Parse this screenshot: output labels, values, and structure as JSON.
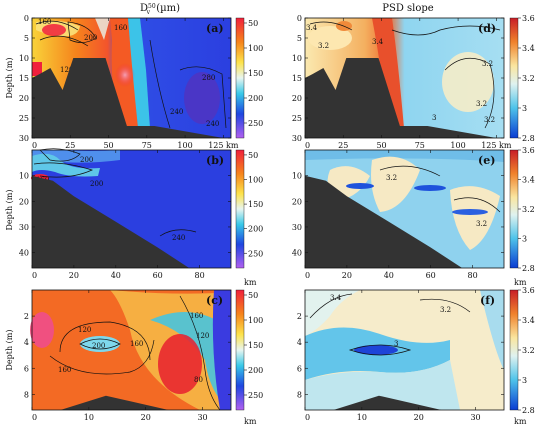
{
  "column_titles": {
    "left": "D",
    "left_sub": "v",
    "left_sup": "50",
    "left_unit": " (µm)",
    "right": "PSD slope"
  },
  "km_label": "km",
  "chart_data": [
    {
      "type": "heatmap",
      "panel": "(a)",
      "column": "left",
      "ylabel": "Depth (m)",
      "xlim": [
        0,
        130
      ],
      "ylim": [
        0,
        30
      ],
      "y_inverted": true,
      "x_ticks": [
        0,
        25,
        50,
        75,
        100,
        125
      ],
      "y_ticks": [
        0,
        5,
        10,
        15,
        20,
        25,
        30
      ],
      "x_tick_labels": [
        "0",
        "25",
        "50",
        "75",
        "100",
        "125 km"
      ],
      "colorbar": {
        "min": 40,
        "max": 280,
        "reversed": true,
        "ticks": [
          50,
          100,
          150,
          200,
          250
        ]
      },
      "contour_labels": [
        "160",
        "200",
        "120",
        "160",
        "280",
        "240",
        "240"
      ],
      "bathymetry": [
        [
          0,
          15
        ],
        [
          5,
          14
        ],
        [
          12,
          12.5
        ],
        [
          20,
          18
        ],
        [
          27,
          10
        ],
        [
          48,
          10
        ],
        [
          62,
          27
        ],
        [
          80,
          27
        ],
        [
          125,
          30
        ]
      ]
    },
    {
      "type": "heatmap",
      "panel": "(b)",
      "column": "left",
      "ylabel": "Depth (m)",
      "xlim": [
        0,
        95
      ],
      "ylim": [
        0,
        46
      ],
      "y_inverted": true,
      "x_ticks": [
        0,
        20,
        40,
        60,
        80
      ],
      "y_ticks": [
        10,
        20,
        30,
        40
      ],
      "x_tick_labels": [
        "0",
        "20",
        "40",
        "60",
        "80"
      ],
      "colorbar": {
        "min": 40,
        "max": 280,
        "reversed": true,
        "ticks": [
          50,
          100,
          150,
          200,
          250
        ]
      },
      "contour_labels": [
        "200",
        "160",
        "200",
        "240"
      ],
      "bathymetry": [
        [
          0,
          10
        ],
        [
          10,
          12
        ],
        [
          20,
          18
        ],
        [
          40,
          28
        ],
        [
          60,
          38
        ],
        [
          75,
          46
        ]
      ]
    },
    {
      "type": "heatmap",
      "panel": "(c)",
      "column": "left",
      "ylabel": "Depth (m)",
      "xlim": [
        0,
        35
      ],
      "ylim": [
        0,
        9.2
      ],
      "y_inverted": true,
      "x_ticks": [
        0,
        10,
        20,
        30
      ],
      "y_ticks": [
        2,
        4,
        6,
        8
      ],
      "x_tick_labels": [
        "0",
        "10",
        "20",
        "30"
      ],
      "colorbar": {
        "min": 40,
        "max": 280,
        "reversed": true,
        "ticks": [
          50,
          100,
          150,
          200,
          250
        ]
      },
      "contour_labels": [
        "160",
        "120",
        "200",
        "160",
        "160",
        "120",
        "80"
      ],
      "bathymetry": [
        [
          5,
          9.2
        ],
        [
          13,
          8.1
        ],
        [
          24,
          9.2
        ]
      ]
    },
    {
      "type": "heatmap",
      "panel": "(d)",
      "column": "right",
      "ylabel": "",
      "xlim": [
        0,
        130
      ],
      "ylim": [
        0,
        30
      ],
      "y_inverted": true,
      "x_ticks": [
        0,
        25,
        50,
        75,
        100,
        125
      ],
      "y_ticks": [
        0,
        5,
        10,
        15,
        20,
        25,
        30
      ],
      "x_tick_labels": [
        "0",
        "25",
        "50",
        "75",
        "100",
        "125 km"
      ],
      "colorbar": {
        "min": 2.8,
        "max": 3.6,
        "ticks": [
          2.8,
          3,
          3.2,
          3.4,
          3.6
        ]
      },
      "contour_labels": [
        "3.4",
        "3.2",
        "3.4",
        "3.2",
        "3.2",
        "3",
        "3.2"
      ],
      "bathymetry": [
        [
          0,
          15
        ],
        [
          5,
          14
        ],
        [
          12,
          12.5
        ],
        [
          20,
          18
        ],
        [
          27,
          10
        ],
        [
          48,
          10
        ],
        [
          62,
          27
        ],
        [
          80,
          27
        ],
        [
          125,
          30
        ]
      ]
    },
    {
      "type": "heatmap",
      "panel": "(e)",
      "column": "right",
      "ylabel": "",
      "xlim": [
        0,
        95
      ],
      "ylim": [
        0,
        46
      ],
      "y_inverted": true,
      "x_ticks": [
        0,
        20,
        40,
        60,
        80
      ],
      "y_ticks": [
        10,
        20,
        30,
        40
      ],
      "x_tick_labels": [
        "0",
        "20",
        "40",
        "60",
        "80"
      ],
      "colorbar": {
        "min": 2.8,
        "max": 3.6,
        "ticks": [
          2.8,
          3,
          3.2,
          3.4,
          3.6
        ]
      },
      "contour_labels": [
        "3.2",
        "3.2"
      ],
      "bathymetry": [
        [
          0,
          10
        ],
        [
          10,
          12
        ],
        [
          20,
          18
        ],
        [
          40,
          28
        ],
        [
          60,
          38
        ],
        [
          75,
          46
        ]
      ]
    },
    {
      "type": "heatmap",
      "panel": "(f)",
      "column": "right",
      "ylabel": "",
      "xlim": [
        0,
        35
      ],
      "ylim": [
        0,
        9.2
      ],
      "y_inverted": true,
      "x_ticks": [
        0,
        10,
        20,
        30
      ],
      "y_ticks": [
        2,
        4,
        6,
        8
      ],
      "x_tick_labels": [
        "0",
        "10",
        "20",
        "30"
      ],
      "colorbar": {
        "min": 2.8,
        "max": 3.6,
        "ticks": [
          2.8,
          3,
          3.2,
          3.4,
          3.6
        ]
      },
      "contour_labels": [
        "3.4",
        "3.2",
        "3"
      ],
      "bathymetry": [
        [
          5,
          9.2
        ],
        [
          13,
          8.1
        ],
        [
          24,
          9.2
        ]
      ]
    }
  ]
}
